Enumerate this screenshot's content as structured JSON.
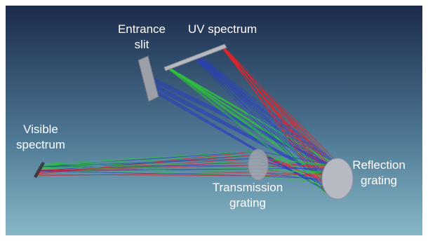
{
  "labels": {
    "entrance_slit": [
      "Entrance",
      "slit"
    ],
    "uv_spectrum": [
      "UV spectrum"
    ],
    "visible_spectrum": [
      "Visible",
      "spectrum"
    ],
    "reflection_grating": [
      "Reflection",
      "grating"
    ],
    "transmission_grating": [
      "Transmission",
      "grating"
    ]
  }
}
